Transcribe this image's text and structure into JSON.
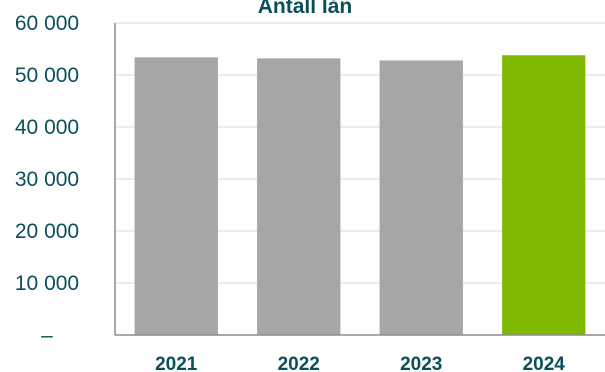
{
  "chart_data": {
    "type": "bar",
    "title": "Antall lån",
    "categories": [
      "2021",
      "2022",
      "2023",
      "2024"
    ],
    "series": [
      {
        "values": [
          53400,
          53200,
          52800,
          53800
        ]
      }
    ],
    "ylim": [
      0,
      60000
    ],
    "yticks": [
      0,
      10000,
      20000,
      30000,
      40000,
      50000,
      60000
    ],
    "ytick_labels": [
      "–",
      "10 000",
      "20 000",
      "30 000",
      "40 000",
      "50 000",
      "60 000"
    ],
    "xlabel": "",
    "ylabel": "",
    "grid": true,
    "colors": {
      "bar": "#a6a6a6",
      "highlight_bar": "#7fba00",
      "text": "#0b4f5a"
    },
    "highlight_category": "2024"
  }
}
